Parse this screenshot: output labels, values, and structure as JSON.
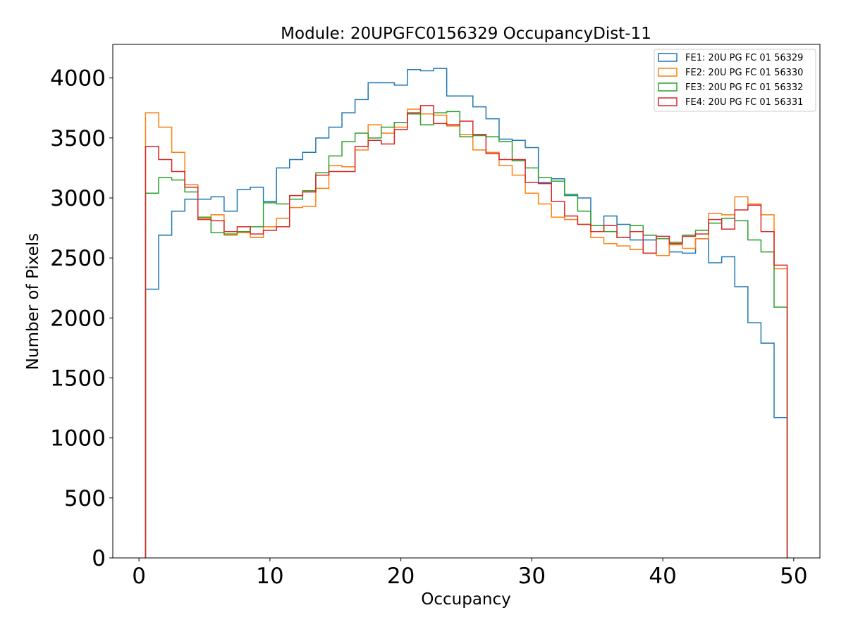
{
  "chart_data": {
    "type": "histogram-step",
    "title": "Module: 20UPGFC0156329 OccupancyDist-11",
    "xlabel": "Occupancy",
    "ylabel": "Number of Pixels",
    "xlim": [
      -2,
      52
    ],
    "ylim": [
      0,
      4280
    ],
    "xticks": [
      0,
      10,
      20,
      30,
      40,
      50
    ],
    "yticks": [
      0,
      500,
      1000,
      1500,
      2000,
      2500,
      3000,
      3500,
      4000
    ],
    "legend_position": "upper right",
    "bin_edges_start": 0.5,
    "bin_width": 1,
    "series": [
      {
        "name": "FE1: 20U PG FC 01 56329",
        "color": "#1f77b4",
        "values": [
          2240,
          2690,
          2890,
          2990,
          2990,
          3010,
          2890,
          3070,
          3090,
          2970,
          3250,
          3320,
          3380,
          3500,
          3590,
          3710,
          3820,
          3960,
          3960,
          3940,
          4070,
          4060,
          4080,
          3850,
          3850,
          3760,
          3660,
          3490,
          3480,
          3420,
          3130,
          3160,
          3030,
          3000,
          2770,
          2850,
          2780,
          2650,
          2650,
          2680,
          2550,
          2540,
          2660,
          2460,
          2510,
          2260,
          1960,
          1790,
          1170
        ]
      },
      {
        "name": "FE2: 20U PG FC 01 56330",
        "color": "#ff7f0e",
        "values": [
          3710,
          3590,
          3380,
          3110,
          2830,
          2860,
          2690,
          2710,
          2670,
          2760,
          2830,
          2920,
          2930,
          3080,
          3270,
          3260,
          3400,
          3610,
          3540,
          3590,
          3740,
          3700,
          3690,
          3600,
          3530,
          3400,
          3380,
          3270,
          3190,
          3040,
          2950,
          2840,
          2820,
          2780,
          2670,
          2620,
          2600,
          2570,
          2540,
          2520,
          2610,
          2580,
          2660,
          2870,
          2860,
          3010,
          2950,
          2860,
          2410
        ]
      },
      {
        "name": "FE3: 20U PG FC 01 56332",
        "color": "#2ca02c",
        "values": [
          3040,
          3170,
          3150,
          3050,
          2840,
          2710,
          2700,
          2720,
          2760,
          2960,
          2950,
          2990,
          3060,
          3210,
          3350,
          3470,
          3540,
          3500,
          3590,
          3630,
          3700,
          3610,
          3710,
          3720,
          3510,
          3520,
          3510,
          3470,
          3310,
          3250,
          3170,
          3140,
          3020,
          2890,
          2770,
          2720,
          2670,
          2770,
          2690,
          2660,
          2630,
          2690,
          2730,
          2790,
          2830,
          2810,
          2650,
          2550,
          2090
        ]
      },
      {
        "name": "FE4: 20U PG FC 01 56331",
        "color": "#d62728",
        "values": [
          3430,
          3320,
          3220,
          3090,
          2820,
          2810,
          2720,
          2760,
          2700,
          2730,
          2760,
          3020,
          3050,
          3190,
          3220,
          3220,
          3430,
          3480,
          3450,
          3570,
          3710,
          3770,
          3620,
          3610,
          3640,
          3530,
          3370,
          3320,
          3320,
          3130,
          3120,
          2970,
          2850,
          2780,
          2720,
          2770,
          2670,
          2720,
          2540,
          2680,
          2620,
          2680,
          2700,
          2820,
          2740,
          2900,
          2940,
          2720,
          2440
        ]
      }
    ]
  }
}
